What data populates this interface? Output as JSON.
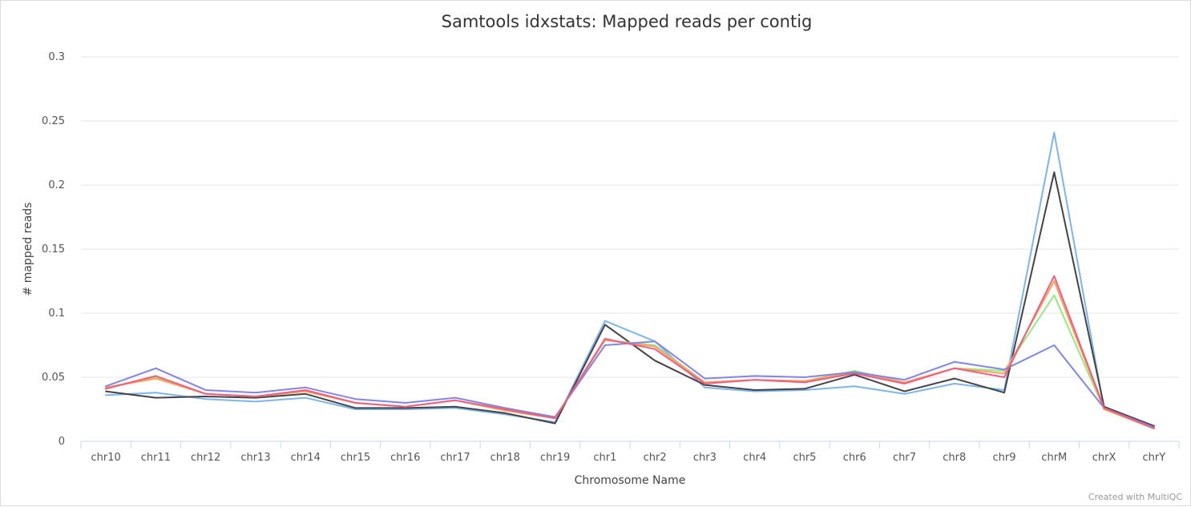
{
  "chart_data": {
    "type": "line",
    "title": "Samtools idxstats: Mapped reads per contig",
    "xlabel": "Chromosome Name",
    "ylabel": "# mapped reads",
    "ylim": [
      0,
      0.3
    ],
    "yticks": [
      0,
      0.05,
      0.1,
      0.15,
      0.2,
      0.25,
      0.3
    ],
    "ytick_labels": [
      "0",
      "0.05",
      "0.1",
      "0.15",
      "0.2",
      "0.25",
      "0.3"
    ],
    "grid": true,
    "credit": "Created with MultiQC",
    "categories": [
      "chr10",
      "chr11",
      "chr12",
      "chr13",
      "chr14",
      "chr15",
      "chr16",
      "chr17",
      "chr18",
      "chr19",
      "chr1",
      "chr2",
      "chr3",
      "chr4",
      "chr5",
      "chr6",
      "chr7",
      "chr8",
      "chr9",
      "chrM",
      "chrX",
      "chrY"
    ],
    "series": [
      {
        "name": "series-blue",
        "color": "#7cb5ec",
        "values": [
          0.036,
          0.038,
          0.033,
          0.031,
          0.034,
          0.025,
          0.025,
          0.026,
          0.021,
          0.015,
          0.094,
          0.078,
          0.042,
          0.039,
          0.04,
          0.043,
          0.037,
          0.045,
          0.04,
          0.241,
          0.025,
          0.012
        ]
      },
      {
        "name": "series-black",
        "color": "#434348",
        "values": [
          0.039,
          0.034,
          0.035,
          0.034,
          0.037,
          0.026,
          0.026,
          0.027,
          0.022,
          0.014,
          0.091,
          0.063,
          0.044,
          0.04,
          0.041,
          0.052,
          0.039,
          0.049,
          0.038,
          0.21,
          0.027,
          0.012
        ]
      },
      {
        "name": "series-green",
        "color": "#90ed7d",
        "values": [
          0.042,
          0.05,
          0.037,
          0.035,
          0.039,
          0.03,
          0.027,
          0.032,
          0.024,
          0.018,
          0.079,
          0.075,
          0.046,
          0.048,
          0.047,
          0.055,
          0.046,
          0.057,
          0.055,
          0.114,
          0.025,
          0.01
        ]
      },
      {
        "name": "series-orange",
        "color": "#f7a35c",
        "values": [
          0.042,
          0.049,
          0.037,
          0.035,
          0.039,
          0.03,
          0.027,
          0.032,
          0.024,
          0.018,
          0.079,
          0.074,
          0.046,
          0.048,
          0.047,
          0.054,
          0.046,
          0.057,
          0.053,
          0.125,
          0.025,
          0.01
        ]
      },
      {
        "name": "series-purple",
        "color": "#8085e9",
        "values": [
          0.043,
          0.057,
          0.04,
          0.038,
          0.042,
          0.033,
          0.03,
          0.034,
          0.026,
          0.019,
          0.075,
          0.078,
          0.049,
          0.051,
          0.05,
          0.054,
          0.048,
          0.062,
          0.056,
          0.075,
          0.026,
          0.011
        ]
      },
      {
        "name": "series-red",
        "color": "#f15c80",
        "values": [
          0.041,
          0.051,
          0.037,
          0.035,
          0.04,
          0.03,
          0.027,
          0.032,
          0.025,
          0.018,
          0.08,
          0.072,
          0.045,
          0.048,
          0.046,
          0.053,
          0.045,
          0.057,
          0.05,
          0.129,
          0.026,
          0.01
        ]
      }
    ]
  }
}
